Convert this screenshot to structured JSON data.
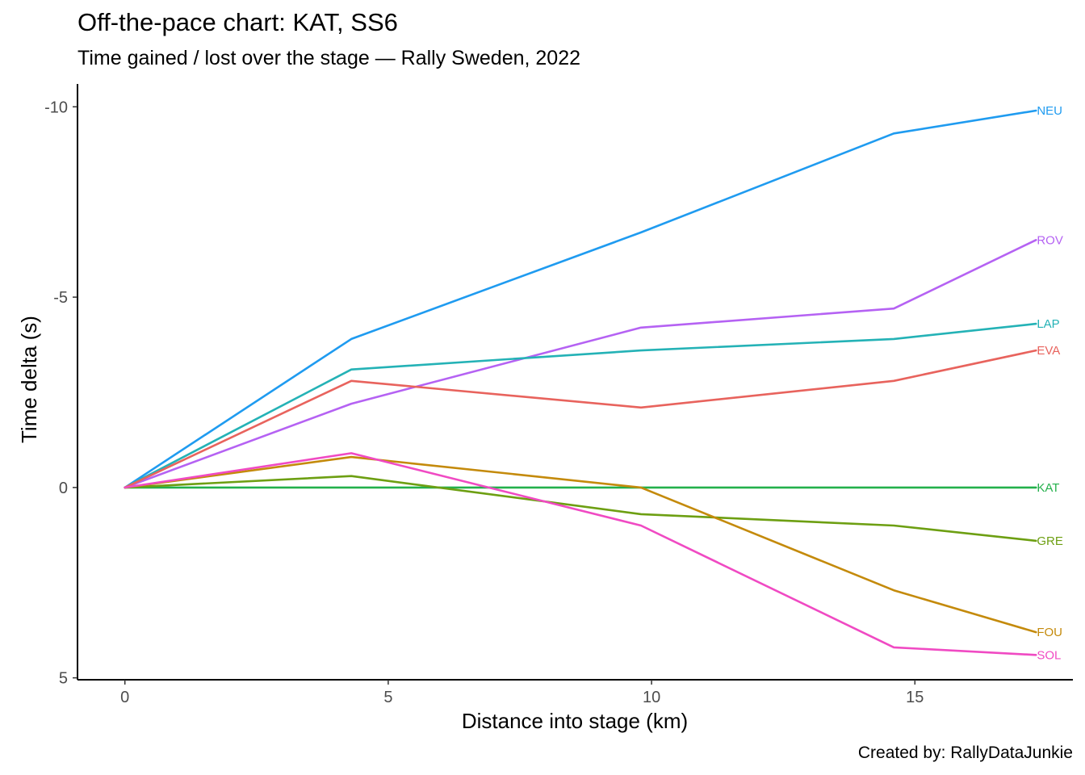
{
  "chart_data": {
    "type": "line",
    "title": "Off-the-pace chart: KAT, SS6",
    "subtitle": "Time gained / lost over the stage — Rally Sweden, 2022",
    "caption": "Created by: RallyDataJunkie",
    "xlabel": "Distance into stage (km)",
    "ylabel": "Time delta (s)",
    "xlim": [
      -0.9,
      18.0
    ],
    "ylim": [
      5.05,
      -10.6
    ],
    "y_reversed": true,
    "grid": false,
    "x_ticks": [
      0,
      5,
      10,
      15
    ],
    "y_ticks": [
      -10,
      -5,
      0,
      5
    ],
    "x": [
      0,
      4.3,
      9.8,
      14.6,
      17.3
    ],
    "series": [
      {
        "name": "NEU",
        "color": "#1f9bf0",
        "values": [
          0,
          -3.9,
          -6.7,
          -9.3,
          -9.9
        ]
      },
      {
        "name": "ROV",
        "color": "#b562f3",
        "values": [
          0,
          -2.2,
          -4.2,
          -4.7,
          -6.5
        ]
      },
      {
        "name": "LAP",
        "color": "#24b2b6",
        "values": [
          0,
          -3.1,
          -3.6,
          -3.9,
          -4.3
        ]
      },
      {
        "name": "EVA",
        "color": "#e8635d",
        "values": [
          0,
          -2.8,
          -2.1,
          -2.8,
          -3.6
        ]
      },
      {
        "name": "KAT",
        "color": "#23b04b",
        "values": [
          0,
          0,
          0,
          0,
          0
        ]
      },
      {
        "name": "GRE",
        "color": "#6d9f12",
        "values": [
          0,
          -0.3,
          0.7,
          1.0,
          1.4
        ]
      },
      {
        "name": "FOU",
        "color": "#c48a0b",
        "values": [
          0,
          -0.8,
          0,
          2.7,
          3.8
        ]
      },
      {
        "name": "SOL",
        "color": "#f04ac3",
        "values": [
          0,
          -0.9,
          1.0,
          4.2,
          4.4
        ]
      }
    ]
  }
}
